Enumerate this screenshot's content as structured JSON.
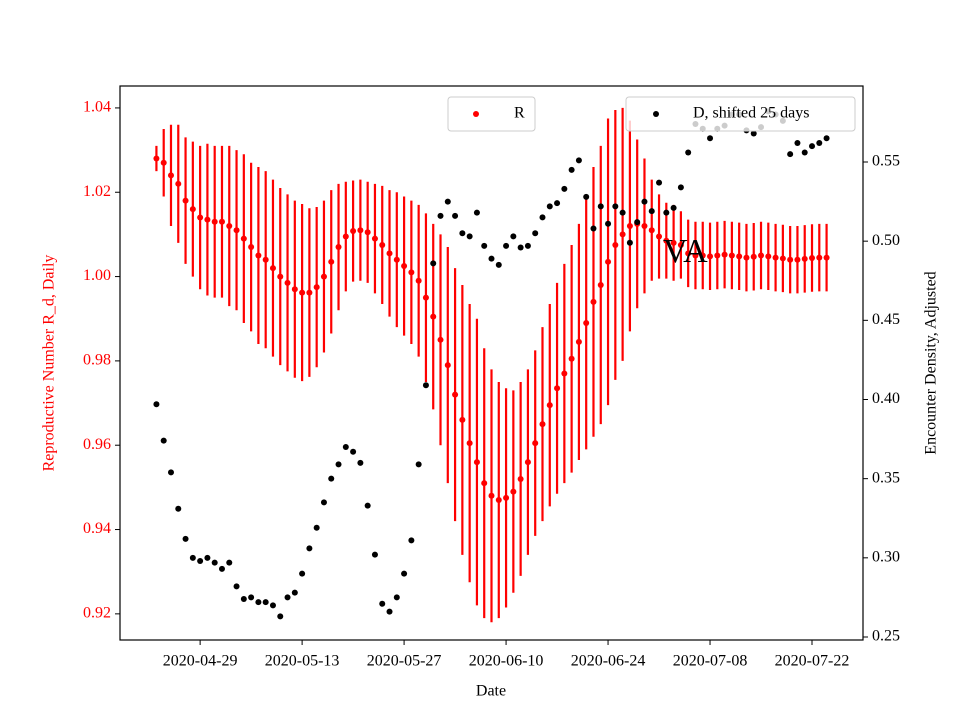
{
  "chart_data": {
    "type": "errorbar-scatter",
    "xlabel": "Date",
    "ylabel": "Reproductive Number R_d, Daily",
    "y2label": "Encounter Density, Adjusted",
    "annotation": "VA",
    "x": [
      "2020-04-23",
      "2020-04-24",
      "2020-04-25",
      "2020-04-26",
      "2020-04-27",
      "2020-04-28",
      "2020-04-29",
      "2020-04-30",
      "2020-05-01",
      "2020-05-02",
      "2020-05-03",
      "2020-05-04",
      "2020-05-05",
      "2020-05-06",
      "2020-05-07",
      "2020-05-08",
      "2020-05-09",
      "2020-05-10",
      "2020-05-11",
      "2020-05-12",
      "2020-05-13",
      "2020-05-14",
      "2020-05-15",
      "2020-05-16",
      "2020-05-17",
      "2020-05-18",
      "2020-05-19",
      "2020-05-20",
      "2020-05-21",
      "2020-05-22",
      "2020-05-23",
      "2020-05-24",
      "2020-05-25",
      "2020-05-26",
      "2020-05-27",
      "2020-05-28",
      "2020-05-29",
      "2020-05-30",
      "2020-05-31",
      "2020-06-01",
      "2020-06-02",
      "2020-06-03",
      "2020-06-04",
      "2020-06-05",
      "2020-06-06",
      "2020-06-07",
      "2020-06-08",
      "2020-06-09",
      "2020-06-10",
      "2020-06-11",
      "2020-06-12",
      "2020-06-13",
      "2020-06-14",
      "2020-06-15",
      "2020-06-16",
      "2020-06-17",
      "2020-06-18",
      "2020-06-19",
      "2020-06-20",
      "2020-06-21",
      "2020-06-22",
      "2020-06-23",
      "2020-06-24",
      "2020-06-25",
      "2020-06-26",
      "2020-06-27",
      "2020-06-28",
      "2020-06-29",
      "2020-06-30",
      "2020-07-01",
      "2020-07-02",
      "2020-07-03",
      "2020-07-04",
      "2020-07-05",
      "2020-07-06",
      "2020-07-07",
      "2020-07-08",
      "2020-07-09",
      "2020-07-10",
      "2020-07-11",
      "2020-07-12",
      "2020-07-13",
      "2020-07-14",
      "2020-07-15",
      "2020-07-16",
      "2020-07-17",
      "2020-07-18",
      "2020-07-19",
      "2020-07-20",
      "2020-07-21",
      "2020-07-22",
      "2020-07-23",
      "2020-07-24"
    ],
    "series": [
      {
        "name": "R",
        "color": "#ff0000",
        "values": [
          1.028,
          1.027,
          1.024,
          1.022,
          1.018,
          1.016,
          1.014,
          1.0135,
          1.013,
          1.013,
          1.012,
          1.011,
          1.009,
          1.007,
          1.005,
          1.004,
          1.002,
          1.0,
          0.9985,
          0.997,
          0.9962,
          0.9962,
          0.9975,
          1.0,
          1.0035,
          1.007,
          1.0095,
          1.0108,
          1.011,
          1.0105,
          1.009,
          1.0075,
          1.0055,
          1.004,
          1.0025,
          1.001,
          0.999,
          0.995,
          0.9905,
          0.985,
          0.979,
          0.972,
          0.966,
          0.9605,
          0.956,
          0.951,
          0.948,
          0.947,
          0.9475,
          0.949,
          0.952,
          0.956,
          0.9605,
          0.965,
          0.9695,
          0.9735,
          0.977,
          0.9805,
          0.9845,
          0.989,
          0.994,
          0.998,
          1.0035,
          1.0075,
          1.01,
          1.012,
          1.0125,
          1.012,
          1.011,
          1.0095,
          1.0085,
          1.008,
          1.0075,
          1.0055,
          1.005,
          1.005,
          1.0048,
          1.005,
          1.0052,
          1.005,
          1.0048,
          1.0045,
          1.0047,
          1.005,
          1.0048,
          1.0045,
          1.0043,
          1.004,
          1.004,
          1.0042,
          1.0044,
          1.0045,
          1.0045
        ],
        "errors": [
          0.003,
          0.008,
          0.012,
          0.014,
          0.015,
          0.016,
          0.017,
          0.018,
          0.018,
          0.018,
          0.019,
          0.019,
          0.02,
          0.02,
          0.021,
          0.021,
          0.021,
          0.021,
          0.021,
          0.021,
          0.021,
          0.02,
          0.019,
          0.018,
          0.017,
          0.015,
          0.013,
          0.012,
          0.012,
          0.012,
          0.013,
          0.014,
          0.015,
          0.016,
          0.0165,
          0.017,
          0.018,
          0.02,
          0.022,
          0.025,
          0.028,
          0.03,
          0.032,
          0.033,
          0.034,
          0.032,
          0.03,
          0.028,
          0.026,
          0.024,
          0.023,
          0.022,
          0.022,
          0.023,
          0.024,
          0.025,
          0.026,
          0.027,
          0.028,
          0.03,
          0.032,
          0.033,
          0.034,
          0.032,
          0.03,
          0.025,
          0.02,
          0.016,
          0.012,
          0.01,
          0.009,
          0.009,
          0.008,
          0.008,
          0.008,
          0.008,
          0.008,
          0.008,
          0.008,
          0.008,
          0.008,
          0.008,
          0.008,
          0.008,
          0.008,
          0.008,
          0.008,
          0.008,
          0.008,
          0.008,
          0.008,
          0.008,
          0.008
        ]
      },
      {
        "name": "D, shifted 25 days",
        "color": "#000000",
        "axis": "y2",
        "values": [
          0.397,
          0.374,
          0.354,
          0.331,
          0.312,
          0.3,
          0.298,
          0.3,
          0.297,
          0.293,
          0.297,
          0.282,
          0.274,
          0.275,
          0.272,
          0.272,
          0.27,
          0.263,
          0.275,
          0.278,
          0.29,
          0.306,
          0.319,
          0.335,
          0.35,
          0.359,
          0.37,
          0.367,
          0.36,
          0.333,
          0.302,
          0.271,
          0.266,
          0.275,
          0.29,
          0.311,
          0.359,
          0.409,
          0.486,
          0.516,
          0.525,
          0.516,
          0.505,
          0.503,
          0.518,
          0.497,
          0.489,
          0.485,
          0.497,
          0.503,
          0.496,
          0.497,
          0.505,
          0.515,
          0.522,
          0.524,
          0.533,
          0.545,
          0.551,
          0.528,
          0.508,
          0.522,
          0.511,
          0.522,
          0.518,
          0.499,
          0.512,
          0.525,
          0.519,
          0.537,
          0.518,
          0.521,
          0.534,
          0.556,
          0.574,
          0.571,
          0.565,
          0.571,
          0.573,
          0.58,
          0.58,
          0.57,
          0.568,
          0.572,
          0.582,
          0.58,
          0.576,
          0.555,
          0.562,
          0.556,
          0.56,
          0.562,
          0.565
        ]
      }
    ],
    "xlim": [
      "2020-04-18",
      "2020-07-29"
    ],
    "xticks": [
      "2020-04-29",
      "2020-05-13",
      "2020-05-27",
      "2020-06-10",
      "2020-06-24",
      "2020-07-08",
      "2020-07-22"
    ],
    "ylim": [
      0.9138,
      1.0452
    ],
    "yticks": [
      0.92,
      0.94,
      0.96,
      0.98,
      {
        "value": 1.0,
        "label": "1.00"
      },
      1.02,
      1.04
    ],
    "y2lim": [
      0.2481,
      0.598
    ],
    "y2ticks": [
      0.25,
      {
        "value": 0.3,
        "label": "0.30"
      },
      0.35,
      {
        "value": 0.4,
        "label": "0.40"
      },
      0.45,
      {
        "value": 0.5,
        "label": "0.50"
      },
      0.55
    ],
    "ylabel_color": "#ff0000"
  }
}
